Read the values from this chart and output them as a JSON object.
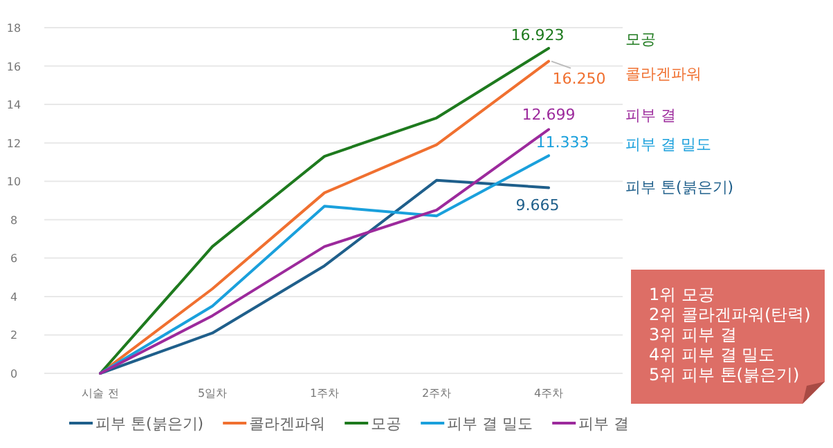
{
  "chart_data": {
    "type": "line",
    "categories": [
      "시술 전",
      "5일차",
      "1주차",
      "2주차",
      "4주차"
    ],
    "series": [
      {
        "name": "피부 톤(붉은기)",
        "color": "#1f5f8b",
        "values": [
          0,
          2.1,
          5.6,
          10.05,
          9.665
        ],
        "value_labels": [
          null,
          null,
          null,
          null,
          "9.665"
        ]
      },
      {
        "name": "콜라겐파워",
        "color": "#f07030",
        "values": [
          0,
          4.4,
          9.4,
          11.9,
          16.25
        ],
        "value_labels": [
          null,
          null,
          null,
          null,
          "16.250"
        ]
      },
      {
        "name": "모공",
        "color": "#1e7a1e",
        "values": [
          0,
          6.6,
          11.3,
          13.3,
          16.923
        ],
        "value_labels": [
          null,
          null,
          null,
          null,
          "16.923"
        ]
      },
      {
        "name": "피부 결 밀도",
        "color": "#1aa0dc",
        "values": [
          0,
          3.5,
          8.7,
          8.2,
          11.333
        ],
        "value_labels": [
          null,
          null,
          null,
          null,
          "11.333"
        ]
      },
      {
        "name": "피부 결",
        "color": "#9c2a9c",
        "values": [
          0,
          3.0,
          6.6,
          8.5,
          12.699
        ],
        "value_labels": [
          null,
          null,
          null,
          null,
          "12.699"
        ]
      }
    ],
    "ylim": [
      0,
      18
    ],
    "yticks": [
      0,
      2,
      4,
      6,
      8,
      10,
      12,
      14,
      16,
      18
    ],
    "grid": "y",
    "legend": "bottom",
    "marker": "none",
    "line_style": "solid",
    "annotations": [
      "1위  모공",
      "2위 콜라겐파워(탄력)",
      "3위 피부 결",
      "4위 피부 결 밀도",
      "5위 피부 톤(붉은기)"
    ]
  }
}
